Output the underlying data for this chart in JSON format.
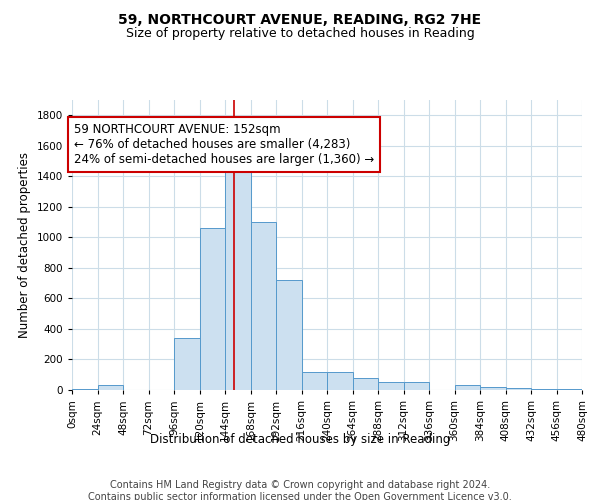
{
  "title_line1": "59, NORTHCOURT AVENUE, READING, RG2 7HE",
  "title_line2": "Size of property relative to detached houses in Reading",
  "xlabel": "Distribution of detached houses by size in Reading",
  "ylabel": "Number of detached properties",
  "bar_color": "#cce0f0",
  "bar_edgecolor": "#5599cc",
  "background_color": "#ffffff",
  "grid_color": "#ccdde8",
  "annotation_text": "59 NORTHCOURT AVENUE: 152sqm\n← 76% of detached houses are smaller (4,283)\n24% of semi-detached houses are larger (1,360) →",
  "annotation_box_color": "#ffffff",
  "annotation_box_edgecolor": "#cc0000",
  "property_sqm": 152,
  "bin_size": 24,
  "bin_starts": [
    0,
    24,
    48,
    72,
    96,
    120,
    144,
    168,
    192,
    216,
    240,
    264,
    288,
    312,
    336,
    360,
    384,
    408,
    432,
    456
  ],
  "bin_labels": [
    "0sqm",
    "24sqm",
    "48sqm",
    "72sqm",
    "96sqm",
    "120sqm",
    "144sqm",
    "168sqm",
    "192sqm",
    "216sqm",
    "240sqm",
    "264sqm",
    "288sqm",
    "312sqm",
    "336sqm",
    "360sqm",
    "384sqm",
    "408sqm",
    "432sqm",
    "456sqm",
    "480sqm"
  ],
  "bar_heights": [
    5,
    30,
    0,
    0,
    340,
    1060,
    1470,
    1100,
    720,
    120,
    120,
    80,
    50,
    50,
    0,
    30,
    20,
    10,
    5,
    5
  ],
  "ylim": [
    0,
    1900
  ],
  "yticks": [
    0,
    200,
    400,
    600,
    800,
    1000,
    1200,
    1400,
    1600,
    1800
  ],
  "footer_text": "Contains HM Land Registry data © Crown copyright and database right 2024.\nContains public sector information licensed under the Open Government Licence v3.0.",
  "title_fontsize": 10,
  "subtitle_fontsize": 9,
  "axis_label_fontsize": 8.5,
  "tick_fontsize": 7.5,
  "annotation_fontsize": 8.5,
  "footer_fontsize": 7
}
